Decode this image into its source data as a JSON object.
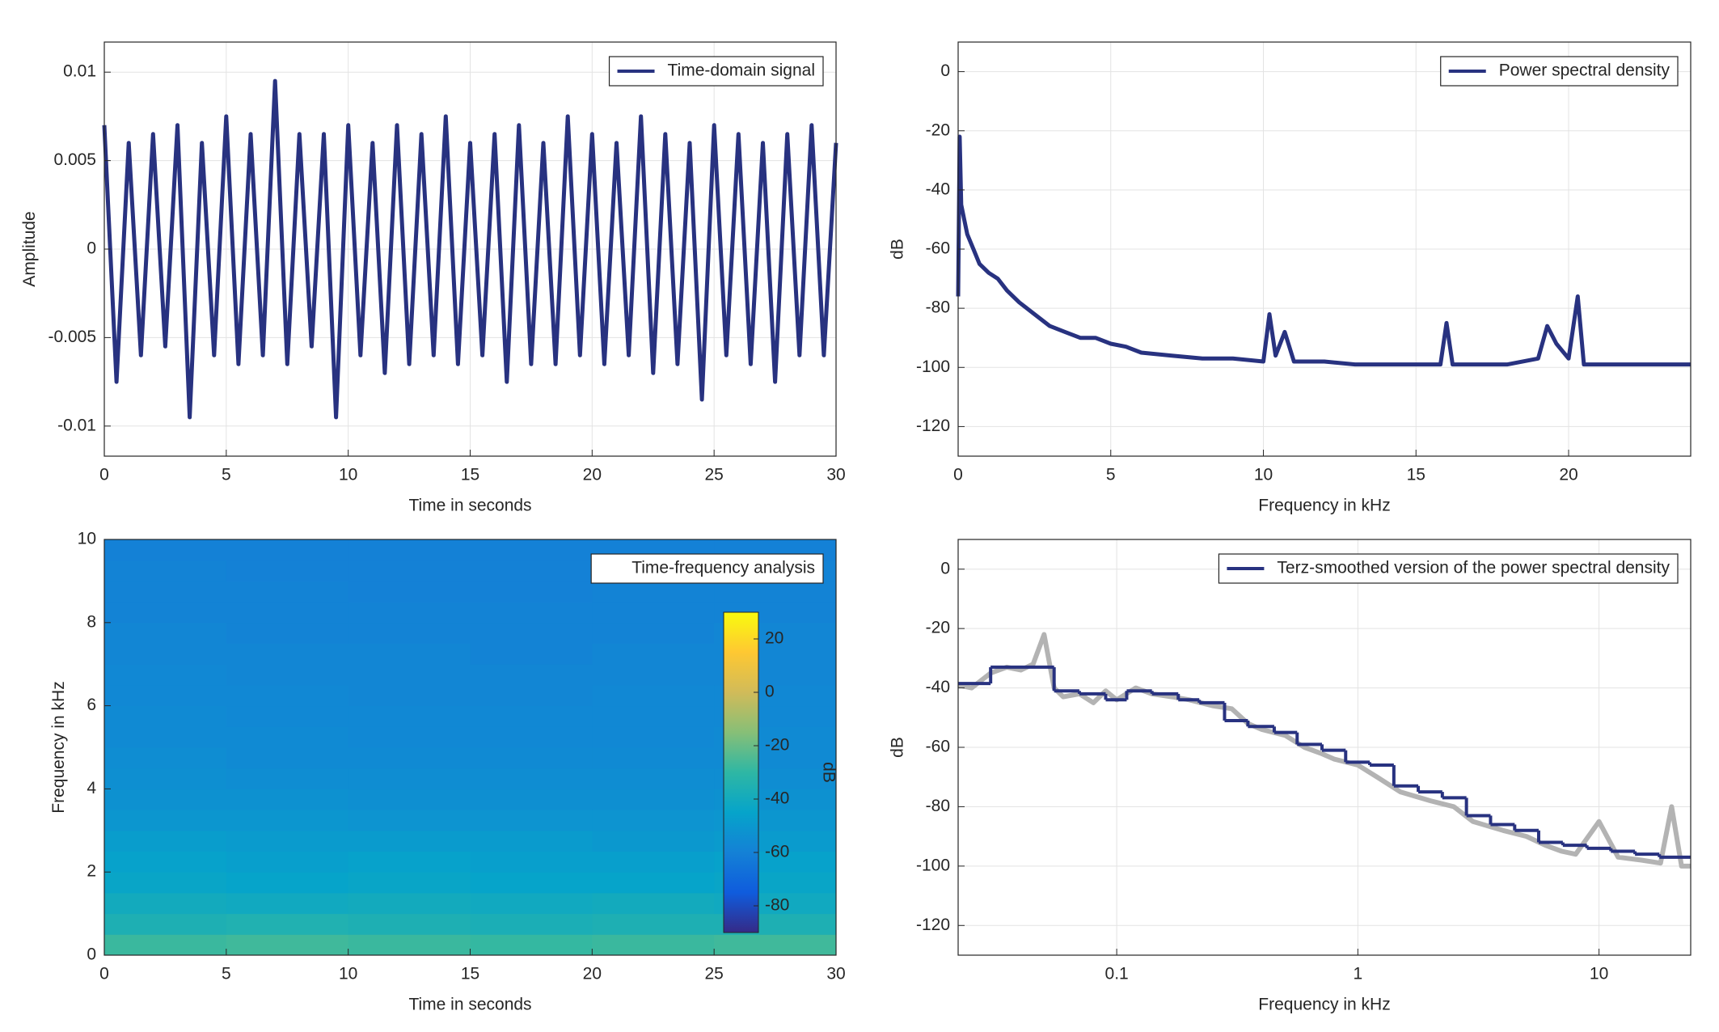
{
  "chart_data": [
    {
      "type": "line",
      "xlabel": "Time in seconds",
      "ylabel": "Amplitude",
      "xlim": [
        0,
        30
      ],
      "ylim": [
        -0.0117,
        0.0117
      ],
      "xticks": [
        0,
        5,
        10,
        15,
        20,
        25,
        30
      ],
      "yticks": [
        -0.01,
        -0.005,
        0,
        0.005,
        0.01
      ],
      "grid": true,
      "legend": "upper right",
      "series": [
        {
          "name": "Time-domain signal",
          "color": "#283280",
          "x": [
            0,
            0.5,
            1,
            1.5,
            2,
            2.5,
            3,
            3.5,
            4,
            4.5,
            5,
            5.5,
            6,
            6.5,
            7,
            7.5,
            8,
            8.5,
            9,
            9.5,
            10,
            10.5,
            11,
            11.5,
            12,
            12.5,
            13,
            13.5,
            14,
            14.5,
            15,
            15.5,
            16,
            16.5,
            17,
            17.5,
            18,
            18.5,
            19,
            19.5,
            20,
            20.5,
            21,
            21.5,
            22,
            22.5,
            23,
            23.5,
            24,
            24.5,
            25,
            25.5,
            26,
            26.5,
            27,
            27.5,
            28,
            28.5,
            29,
            29.5,
            30
          ],
          "values": [
            0.007,
            -0.0075,
            0.006,
            -0.006,
            0.0065,
            -0.0055,
            0.007,
            -0.0095,
            0.006,
            -0.006,
            0.0075,
            -0.0065,
            0.0065,
            -0.006,
            0.0095,
            -0.0065,
            0.0065,
            -0.0055,
            0.0065,
            -0.0095,
            0.007,
            -0.006,
            0.006,
            -0.007,
            0.007,
            -0.0065,
            0.0065,
            -0.006,
            0.0075,
            -0.0065,
            0.006,
            -0.006,
            0.0065,
            -0.0075,
            0.007,
            -0.0065,
            0.006,
            -0.0065,
            0.0075,
            -0.006,
            0.0065,
            -0.0065,
            0.006,
            -0.006,
            0.0075,
            -0.007,
            0.0065,
            -0.0065,
            0.006,
            -0.0085,
            0.007,
            -0.006,
            0.0065,
            -0.0065,
            0.006,
            -0.0075,
            0.0065,
            -0.006,
            0.007,
            -0.006,
            0.006
          ]
        }
      ]
    },
    {
      "type": "line",
      "xlabel": "Frequency in kHz",
      "ylabel": "dB",
      "xlim": [
        0,
        24
      ],
      "ylim": [
        -130,
        10
      ],
      "xticks": [
        0,
        5,
        10,
        15,
        20
      ],
      "yticks": [
        -120,
        -100,
        -80,
        -60,
        -40,
        -20,
        0
      ],
      "grid": true,
      "legend": "upper right",
      "series": [
        {
          "name": "Power spectral density",
          "color": "#283280",
          "x": [
            0,
            0.05,
            0.1,
            0.2,
            0.3,
            0.5,
            0.7,
            1,
            1.3,
            1.6,
            2,
            2.5,
            3,
            3.5,
            4,
            4.5,
            5,
            5.5,
            6,
            7,
            8,
            9,
            10,
            10.2,
            10.4,
            10.7,
            11,
            12,
            13,
            14,
            15,
            15.8,
            16,
            16.2,
            17,
            18,
            19,
            19.3,
            19.6,
            20,
            20.3,
            20.5,
            21,
            22,
            23,
            24
          ],
          "values": [
            -76,
            -22,
            -45,
            -50,
            -55,
            -60,
            -65,
            -68,
            -70,
            -74,
            -78,
            -82,
            -86,
            -88,
            -90,
            -90,
            -92,
            -93,
            -95,
            -96,
            -97,
            -97,
            -98,
            -82,
            -96,
            -88,
            -98,
            -98,
            -99,
            -99,
            -99,
            -99,
            -85,
            -99,
            -99,
            -99,
            -97,
            -86,
            -92,
            -97,
            -76,
            -99,
            -99,
            -99,
            -99,
            -99
          ]
        }
      ]
    },
    {
      "type": "heatmap",
      "name": "Time-frequency analysis",
      "xlabel": "Time in seconds",
      "ylabel": "Frequency in kHz",
      "xlim": [
        0,
        30
      ],
      "ylim": [
        0,
        10
      ],
      "xticks": [
        0,
        5,
        10,
        15,
        20,
        25,
        30
      ],
      "yticks": [
        0,
        2,
        4,
        6,
        8,
        10
      ],
      "grid": false,
      "legend": "upper right",
      "x": [
        2.5,
        7.5,
        12.5,
        17.5,
        22.5,
        27.5
      ],
      "y": [
        0.25,
        0.75,
        1.25,
        1.75,
        2.25,
        2.75,
        3.25,
        3.75,
        4.25,
        4.75,
        5.25,
        5.75,
        6.25,
        6.75,
        7.25,
        7.75,
        8.25,
        8.75,
        9.25,
        9.75
      ],
      "values": [
        [
          -28,
          -27,
          -28,
          -29,
          -28,
          -27
        ],
        [
          -36,
          -35,
          -36,
          -37,
          -36,
          -36
        ],
        [
          -40,
          -41,
          -40,
          -41,
          -40,
          -41
        ],
        [
          -44,
          -45,
          -44,
          -45,
          -45,
          -44
        ],
        [
          -46,
          -47,
          -46,
          -47,
          -47,
          -46
        ],
        [
          -48,
          -49,
          -49,
          -49,
          -50,
          -49
        ],
        [
          -51,
          -51,
          -52,
          -52,
          -52,
          -51
        ],
        [
          -53,
          -53,
          -54,
          -54,
          -54,
          -53
        ],
        [
          -54,
          -55,
          -55,
          -55,
          -55,
          -55
        ],
        [
          -55,
          -56,
          -56,
          -56,
          -56,
          -56
        ],
        [
          -56,
          -56,
          -57,
          -57,
          -57,
          -56
        ],
        [
          -56,
          -57,
          -57,
          -57,
          -57,
          -57
        ],
        [
          -57,
          -57,
          -58,
          -58,
          -57,
          -57
        ],
        [
          -57,
          -58,
          -58,
          -58,
          -58,
          -58
        ],
        [
          -58,
          -58,
          -58,
          -59,
          -58,
          -58
        ],
        [
          -58,
          -59,
          -59,
          -59,
          -59,
          -58
        ],
        [
          -59,
          -59,
          -59,
          -59,
          -59,
          -59
        ],
        [
          -59,
          -59,
          -60,
          -60,
          -59,
          -59
        ],
        [
          -59,
          -60,
          -60,
          -60,
          -60,
          -59
        ],
        [
          -60,
          -60,
          -60,
          -60,
          -60,
          -60
        ]
      ],
      "clim": [
        -90,
        30
      ],
      "colorbar_ticks": [
        -80,
        -60,
        -40,
        -20,
        0,
        20
      ],
      "colorbar_label": "dB",
      "colormap": [
        "#352a87",
        "#0f5cdd",
        "#1481d6",
        "#06a4ca",
        "#2eb7a4",
        "#87bf77",
        "#d1bb59",
        "#fec832",
        "#f9fb0e"
      ]
    },
    {
      "type": "line",
      "xscale": "log",
      "xlabel": "Frequency in kHz",
      "ylabel": "dB",
      "xlim": [
        0.022,
        24
      ],
      "ylim": [
        -130,
        10
      ],
      "xticks": [
        0.1,
        1,
        10
      ],
      "yticks": [
        -120,
        -100,
        -80,
        -60,
        -40,
        -20,
        0
      ],
      "grid": true,
      "legend": "upper right",
      "series": [
        {
          "color": "#b3b3b3",
          "x": [
            0.022,
            0.025,
            0.03,
            0.035,
            0.04,
            0.045,
            0.05,
            0.055,
            0.06,
            0.07,
            0.08,
            0.09,
            0.1,
            0.12,
            0.14,
            0.17,
            0.2,
            0.25,
            0.3,
            0.35,
            0.4,
            0.5,
            0.6,
            0.7,
            0.8,
            1,
            1.2,
            1.5,
            2,
            2.5,
            3,
            4,
            5,
            6,
            7,
            8,
            10,
            12,
            15,
            18,
            20,
            22,
            24
          ],
          "values": [
            -39,
            -40,
            -35,
            -33,
            -34,
            -32,
            -22,
            -40,
            -43,
            -42,
            -45,
            -41,
            -44,
            -40,
            -42,
            -43,
            -44,
            -46,
            -47,
            -52,
            -54,
            -56,
            -60,
            -62,
            -64,
            -66,
            -70,
            -75,
            -78,
            -80,
            -85,
            -88,
            -90,
            -93,
            -95,
            -96,
            -85,
            -97,
            -98,
            -99,
            -80,
            -100,
            -100
          ]
        },
        {
          "name": "Terz-smoothed version of the power spectral density",
          "color": "#283280",
          "step": "post",
          "x": [
            0.022,
            0.03,
            0.055,
            0.07,
            0.09,
            0.11,
            0.14,
            0.18,
            0.22,
            0.28,
            0.35,
            0.45,
            0.56,
            0.71,
            0.89,
            1.12,
            1.41,
            1.78,
            2.24,
            2.82,
            3.55,
            4.47,
            5.62,
            7.08,
            8.91,
            11.2,
            14.1,
            17.8
          ],
          "values": [
            -38.5,
            -33,
            -41,
            -42,
            -44,
            -41,
            -42,
            -44,
            -45,
            -51,
            -53,
            -55,
            -59,
            -61,
            -65,
            -66,
            -73,
            -75,
            -77,
            -83,
            -86,
            -88,
            -92,
            -93,
            -94,
            -95,
            -96,
            -97
          ]
        }
      ]
    }
  ]
}
